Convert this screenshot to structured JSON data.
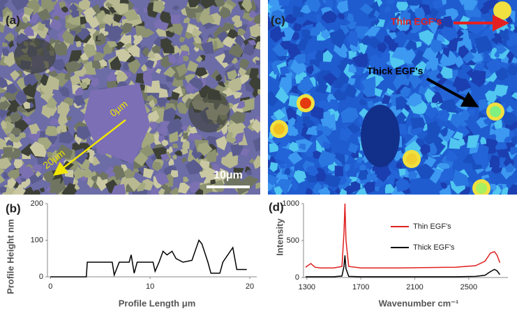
{
  "figure": {
    "panel_a": {
      "label": "(a)",
      "start": "0μm",
      "end": "20μm",
      "scale": "10μm"
    },
    "panel_c": {
      "label": "(c)",
      "thin": "Thin EGF's",
      "thick": "Thick EGF's"
    }
  },
  "chart_data": [
    {
      "type": "line",
      "label": "(b)",
      "x_label": "Profile Length μm",
      "y_label": "Profile Height nm",
      "color": "#000000",
      "x": [
        0,
        3.6,
        3.7,
        6.2,
        6.4,
        6.9,
        7.9,
        8.1,
        8.4,
        8.7,
        10.3,
        10.5,
        10.9,
        11.3,
        11.7,
        12.2,
        12.6,
        13.3,
        14.2,
        14.9,
        15.2,
        15.8,
        16.1,
        17.0,
        17.3,
        18.3,
        18.7,
        19.7
      ],
      "values": [
        0,
        0,
        40,
        40,
        5,
        40,
        40,
        60,
        10,
        40,
        40,
        15,
        40,
        70,
        60,
        70,
        50,
        40,
        45,
        100,
        90,
        40,
        10,
        10,
        40,
        80,
        20,
        20
      ],
      "xlim": [
        -0.3,
        20.7
      ],
      "xticks": [
        0,
        10,
        20
      ],
      "ylim": [
        0,
        200
      ],
      "yticks": [
        0,
        100,
        200
      ]
    },
    {
      "type": "line",
      "label": "(d)",
      "x_label": "Wavenumber cm⁻¹",
      "y_label": "Intensity",
      "legend": "upper right",
      "x": [
        1290,
        1330,
        1360,
        1400,
        1500,
        1560,
        1575,
        1582,
        1590,
        1610,
        1700,
        2000,
        2400,
        2550,
        2620,
        2660,
        2690,
        2710,
        2730
      ],
      "series": [
        {
          "name": "Thin EGF's",
          "color": "#e02020",
          "values": [
            140,
            190,
            140,
            130,
            130,
            150,
            600,
            1000,
            500,
            150,
            130,
            130,
            140,
            160,
            220,
            330,
            350,
            300,
            200
          ]
        },
        {
          "name": "Thick EGF's",
          "color": "#000000",
          "values": [
            10,
            10,
            10,
            10,
            10,
            20,
            150,
            300,
            120,
            15,
            10,
            10,
            10,
            15,
            30,
            80,
            110,
            90,
            40
          ]
        }
      ],
      "xlim": [
        1275,
        2790
      ],
      "xticks": [
        1300,
        1700,
        2100,
        2500
      ],
      "ylim": [
        0,
        1000
      ],
      "yticks": [
        0,
        500,
        1000
      ]
    }
  ]
}
